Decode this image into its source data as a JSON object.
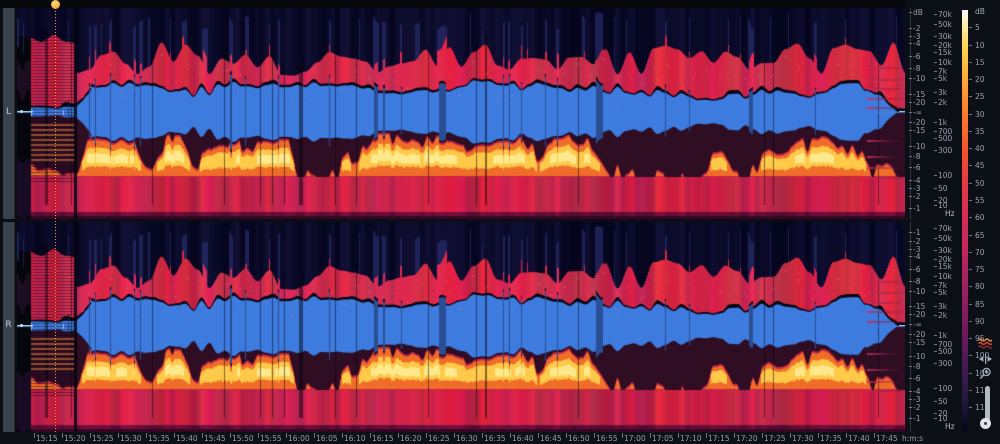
{
  "channels": {
    "left": "L",
    "right": "R"
  },
  "timeline": {
    "unit": "h:m:s",
    "labels": [
      "15:15",
      "15:20",
      "15:25",
      "15:30",
      "15:35",
      "15:40",
      "15:45",
      "15:50",
      "15:55",
      "16:00",
      "16:05",
      "16:10",
      "16:15",
      "16:20",
      "16:25",
      "16:30",
      "16:35",
      "16:40",
      "16:45",
      "16:50",
      "16:55",
      "17:00",
      "17:05",
      "17:10",
      "17:15",
      "17:20",
      "17:25",
      "17:30",
      "17:35",
      "17:40",
      "17:45"
    ]
  },
  "freq_scale": {
    "unit": "Hz",
    "unit_pos": 0.971,
    "ticks": [
      {
        "t": "70k",
        "p": 0.028
      },
      {
        "t": "50k",
        "p": 0.076
      },
      {
        "t": "30k",
        "p": 0.133
      },
      {
        "t": "20k",
        "p": 0.175
      },
      {
        "t": "15k",
        "p": 0.209
      },
      {
        "t": "10k",
        "p": 0.256
      },
      {
        "t": "7k",
        "p": 0.299
      },
      {
        "t": "5k",
        "p": 0.332
      },
      {
        "t": "3k",
        "p": 0.398
      },
      {
        "t": "2k",
        "p": 0.445
      },
      {
        "t": "1k",
        "p": 0.54
      },
      {
        "t": "700",
        "p": 0.583
      },
      {
        "t": "500",
        "p": 0.616
      },
      {
        "t": "300",
        "p": 0.673
      },
      {
        "t": "100",
        "p": 0.791
      },
      {
        "t": "50",
        "p": 0.853
      },
      {
        "t": "20",
        "p": 0.91
      },
      {
        "t": "10",
        "p": 0.934
      }
    ]
  },
  "amp_scale": {
    "unit": "dB",
    "top_channel": [
      {
        "t": "dB",
        "p": 0.019
      },
      {
        "t": "-2",
        "p": 0.095
      },
      {
        "t": "-3",
        "p": 0.133
      },
      {
        "t": "-4",
        "p": 0.166
      },
      {
        "t": "-6",
        "p": 0.227
      },
      {
        "t": "-8",
        "p": 0.284
      },
      {
        "t": "-10",
        "p": 0.332
      },
      {
        "t": "-15",
        "p": 0.408
      },
      {
        "t": "-20",
        "p": 0.445
      },
      {
        "t": "-∞",
        "p": 0.493
      },
      {
        "t": "-20",
        "p": 0.54
      },
      {
        "t": "-15",
        "p": 0.578
      },
      {
        "t": "-10",
        "p": 0.654
      },
      {
        "t": "-8",
        "p": 0.701
      },
      {
        "t": "-6",
        "p": 0.754
      },
      {
        "t": "-4",
        "p": 0.815
      },
      {
        "t": "-3",
        "p": 0.853
      },
      {
        "t": "-2",
        "p": 0.891
      },
      {
        "t": "-1",
        "p": 0.948
      }
    ],
    "bottom_channel": [
      {
        "t": "-1",
        "p": 0.048
      },
      {
        "t": "-2",
        "p": 0.09
      },
      {
        "t": "-3",
        "p": 0.128
      },
      {
        "t": "-4",
        "p": 0.16
      },
      {
        "t": "-6",
        "p": 0.222
      },
      {
        "t": "-8",
        "p": 0.279
      },
      {
        "t": "-10",
        "p": 0.327
      },
      {
        "t": "-15",
        "p": 0.398
      },
      {
        "t": "-20",
        "p": 0.436
      },
      {
        "t": "-∞",
        "p": 0.484
      },
      {
        "t": "-20",
        "p": 0.532
      },
      {
        "t": "-15",
        "p": 0.57
      },
      {
        "t": "-10",
        "p": 0.636
      },
      {
        "t": "-8",
        "p": 0.684
      },
      {
        "t": "-6",
        "p": 0.741
      },
      {
        "t": "-4",
        "p": 0.803
      },
      {
        "t": "-3",
        "p": 0.841
      },
      {
        "t": "-2",
        "p": 0.879
      },
      {
        "t": "-1",
        "p": 0.932
      }
    ]
  },
  "colorbar": {
    "unit": "dB",
    "tick_values": [
      5,
      10,
      15,
      20,
      25,
      30,
      35,
      40,
      45,
      50,
      55,
      60,
      65,
      70,
      75,
      80,
      85,
      90,
      95,
      100,
      105,
      110,
      115
    ],
    "gradient": [
      "#ffffff",
      "#ffd24e",
      "#ff7a2c",
      "#d42e55",
      "#7d1c60",
      "#261840",
      "#070714"
    ]
  },
  "icons": {
    "spectral": "spectral-view-icon",
    "fit": "fit-horizontal-icon",
    "zoom_in": "zoom-in-icon",
    "zoom_out": "zoom-out-icon",
    "zoom_slider": "zoom-slider"
  },
  "colors": {
    "background": "#0a0d13",
    "channel_strip": "#39414d",
    "waveform_blue": "#3e7bdf",
    "spectro_red": "#d42e55",
    "spectro_orange": "#ef6d28",
    "spectro_yellow": "#ffc94a",
    "spectro_navy": "#141736",
    "playhead_orange": "#f0a638",
    "zero_line_cyan": "#8fd0e8",
    "scale_text": "#98a3b1"
  },
  "spectrogram_view": {
    "type": "spectrogram-with-waveform-overlay",
    "channel_labels": [
      "L",
      "R"
    ],
    "time_range": [
      "15:15",
      "17:45"
    ],
    "time_tick_interval_seconds": 5,
    "frequency_range": [
      "10",
      "70k"
    ],
    "frequency_unit": "Hz",
    "waveform_scale_range_db": [
      "-1",
      "-∞"
    ],
    "colormap_range_db": [
      0,
      -120
    ]
  }
}
